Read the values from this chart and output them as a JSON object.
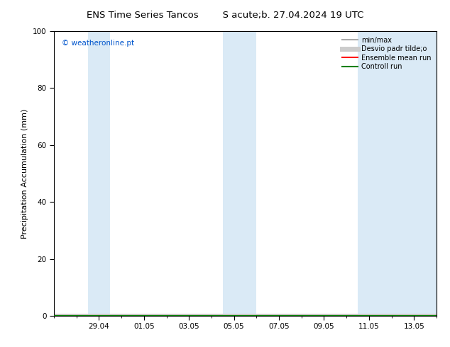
{
  "title_left": "ENS Time Series Tancos",
  "title_right": "Séb. 27.04.2024 19 UTC",
  "title_right_raw": "S acute;b. 27.04.2024 19 UTC",
  "ylabel": "Precipitation Accumulation (mm)",
  "ylim": [
    0,
    100
  ],
  "yticks": [
    0,
    20,
    40,
    60,
    80,
    100
  ],
  "xtick_labels": [
    "29.04",
    "01.05",
    "03.05",
    "05.05",
    "07.05",
    "09.05",
    "11.05",
    "13.05"
  ],
  "xtick_positions": [
    2,
    4,
    6,
    8,
    10,
    12,
    14,
    16
  ],
  "x_min": 0,
  "x_max": 17,
  "shaded_bands": [
    {
      "x_start": 1.5,
      "x_end": 2.5
    },
    {
      "x_start": 7.5,
      "x_end": 9.0
    },
    {
      "x_start": 13.5,
      "x_end": 17.0
    }
  ],
  "band_color": "#daeaf6",
  "watermark_text": "© weatheronline.pt",
  "watermark_color": "#0055cc",
  "legend_entries": [
    {
      "label": "min/max",
      "color": "#aaaaaa",
      "lw": 1.5
    },
    {
      "label": "Desvio padr tilde;o",
      "color": "#cccccc",
      "lw": 5
    },
    {
      "label": "Ensemble mean run",
      "color": "red",
      "lw": 1.5
    },
    {
      "label": "Controll run",
      "color": "green",
      "lw": 1.5
    }
  ],
  "bg_color": "#ffffff",
  "plot_bg_color": "#ffffff",
  "title_fontsize": 9.5,
  "label_fontsize": 8,
  "tick_fontsize": 7.5,
  "legend_fontsize": 7,
  "figsize": [
    6.34,
    4.9
  ],
  "dpi": 100
}
